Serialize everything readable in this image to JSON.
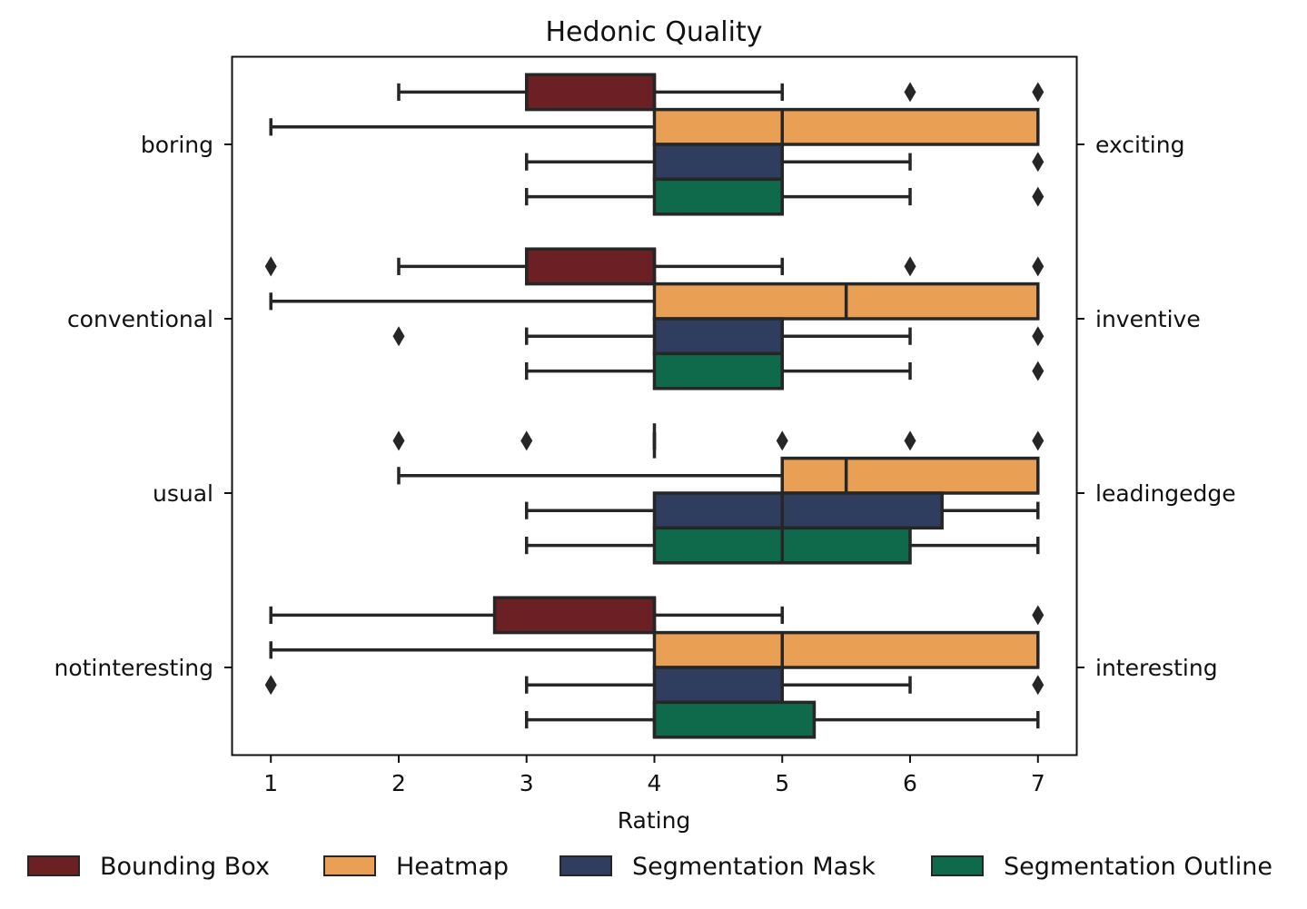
{
  "chart_data": {
    "type": "box",
    "orientation": "horizontal",
    "title": "Hedonic Quality",
    "xlabel": "Rating",
    "xlim": [
      0.7,
      7.3
    ],
    "xticks": [
      1,
      2,
      3,
      4,
      5,
      6,
      7
    ],
    "grid": false,
    "legend_position": "bottom",
    "categories_left": [
      "boring",
      "conventional",
      "usual",
      "notinteresting"
    ],
    "categories_right": [
      "exciting",
      "inventive",
      "leadingedge",
      "interesting"
    ],
    "series": [
      {
        "name": "Bounding Box",
        "color": "#6b2123"
      },
      {
        "name": "Heatmap",
        "color": "#e9a055"
      },
      {
        "name": "Segmentation Mask",
        "color": "#2f3e5f"
      },
      {
        "name": "Segmentation Outline",
        "color": "#0f6a4b"
      }
    ],
    "boxes": [
      [
        {
          "whislo": 2,
          "q1": 3,
          "med": 4,
          "q3": 4,
          "whishi": 5,
          "fliers": [
            6,
            7
          ]
        },
        {
          "whislo": 1,
          "q1": 4,
          "med": 5,
          "q3": 7,
          "whishi": 7,
          "fliers": []
        },
        {
          "whislo": 3,
          "q1": 4,
          "med": 5,
          "q3": 5,
          "whishi": 6,
          "fliers": [
            7
          ]
        },
        {
          "whislo": 3,
          "q1": 4,
          "med": 5,
          "q3": 5,
          "whishi": 6,
          "fliers": [
            7
          ]
        }
      ],
      [
        {
          "whislo": 2,
          "q1": 3,
          "med": 4,
          "q3": 4,
          "whishi": 5,
          "fliers": [
            1,
            6,
            7
          ]
        },
        {
          "whislo": 1,
          "q1": 4,
          "med": 5.5,
          "q3": 7,
          "whishi": 7,
          "fliers": []
        },
        {
          "whislo": 3,
          "q1": 4,
          "med": 5,
          "q3": 5,
          "whishi": 6,
          "fliers": [
            2,
            7
          ]
        },
        {
          "whislo": 3,
          "q1": 4,
          "med": 5,
          "q3": 5,
          "whishi": 6,
          "fliers": [
            7
          ]
        }
      ],
      [
        {
          "whislo": 4,
          "q1": 4,
          "med": 4,
          "q3": 4,
          "whishi": 4,
          "fliers": [
            2,
            3,
            5,
            6,
            7
          ]
        },
        {
          "whislo": 2,
          "q1": 5,
          "med": 5.5,
          "q3": 7,
          "whishi": 7,
          "fliers": []
        },
        {
          "whislo": 3,
          "q1": 4,
          "med": 5,
          "q3": 6.25,
          "whishi": 7,
          "fliers": []
        },
        {
          "whislo": 3,
          "q1": 4,
          "med": 5,
          "q3": 6,
          "whishi": 7,
          "fliers": []
        }
      ],
      [
        {
          "whislo": 1,
          "q1": 2.75,
          "med": 4,
          "q3": 4,
          "whishi": 5,
          "fliers": [
            7
          ]
        },
        {
          "whislo": 1,
          "q1": 4,
          "med": 5,
          "q3": 7,
          "whishi": 7,
          "fliers": []
        },
        {
          "whislo": 3,
          "q1": 4,
          "med": 5,
          "q3": 5,
          "whishi": 6,
          "fliers": [
            1,
            7
          ]
        },
        {
          "whislo": 3,
          "q1": 4,
          "med": 4,
          "q3": 5.25,
          "whishi": 7,
          "fliers": []
        }
      ]
    ]
  }
}
